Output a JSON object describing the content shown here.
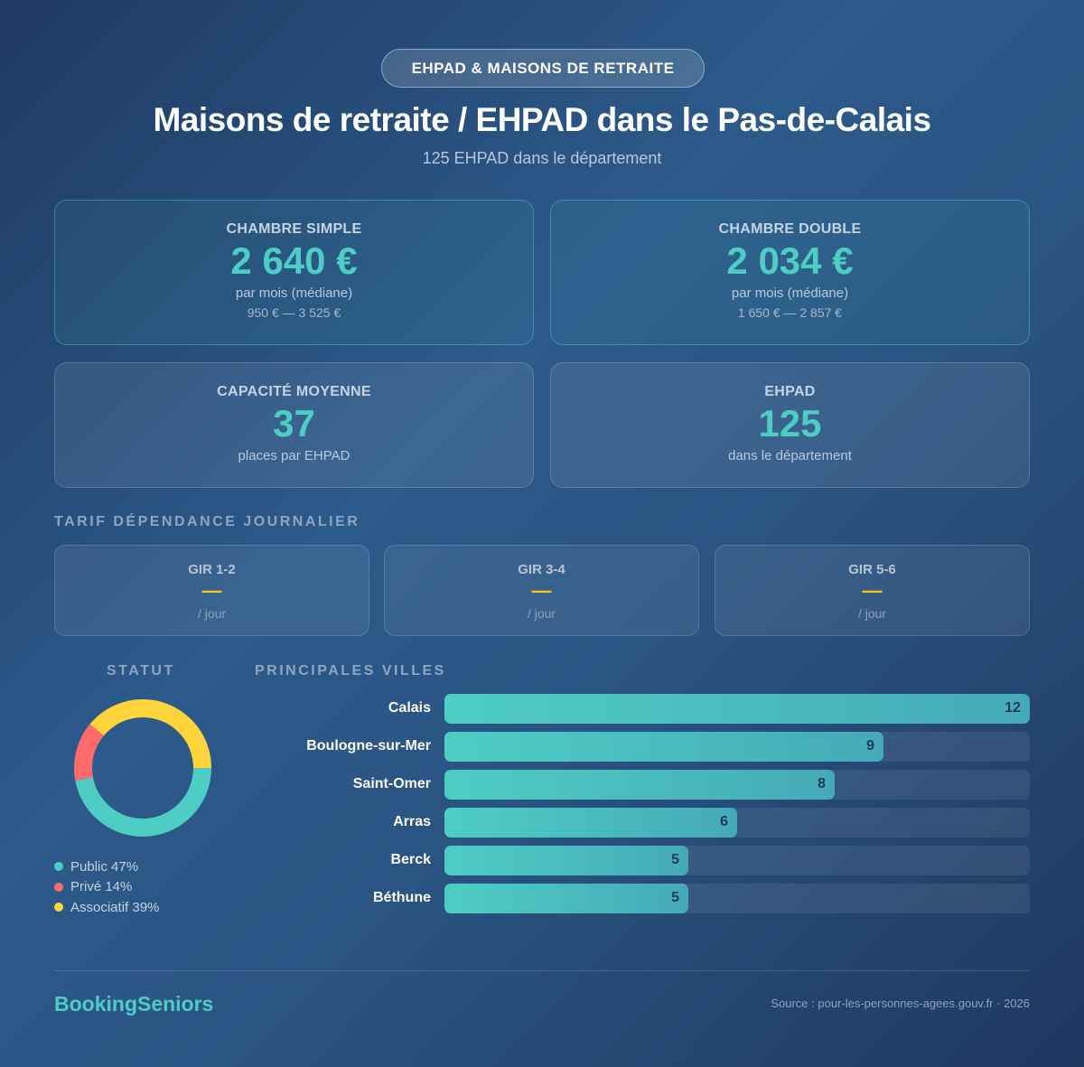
{
  "badge": "EHPAD & MAISONS DE RETRAITE",
  "title": "Maisons de retraite / EHPAD dans le Pas-de-Calais",
  "subtitle": "125 EHPAD dans le département",
  "cards": [
    {
      "label": "CHAMBRE SIMPLE",
      "value": "2 640 €",
      "sub": "par mois (médiane)",
      "range": "950 € — 3 525 €"
    },
    {
      "label": "CHAMBRE DOUBLE",
      "value": "2 034 €",
      "sub": "par mois (médiane)",
      "range": "1 650 € — 2 857 €"
    },
    {
      "label": "CAPACITÉ MOYENNE",
      "value": "37",
      "sub": "places par EHPAD"
    },
    {
      "label": "EHPAD",
      "value": "125",
      "sub": "dans le département"
    }
  ],
  "tarif": {
    "title": "TARIF DÉPENDANCE JOURNALIER",
    "items": [
      {
        "label": "GIR 1-2",
        "value": "—",
        "unit": "/ jour"
      },
      {
        "label": "GIR 3-4",
        "value": "—",
        "unit": "/ jour"
      },
      {
        "label": "GIR 5-6",
        "value": "—",
        "unit": "/ jour"
      }
    ]
  },
  "colors": {
    "accent": "#4ecdc4",
    "public": "#4ecdc4",
    "prive": "#ff6b6b",
    "associatif": "#ffd43b"
  },
  "chart_data": [
    {
      "type": "pie",
      "title": "STATUT",
      "donut": true,
      "slices": [
        {
          "label": "Public 47%",
          "name": "Public",
          "value": 47,
          "color": "#4ecdc4"
        },
        {
          "label": "Privé 14%",
          "name": "Privé",
          "value": 14,
          "color": "#ff6b6b"
        },
        {
          "label": "Associatif 39%",
          "name": "Associatif",
          "value": 39,
          "color": "#ffd43b"
        }
      ]
    },
    {
      "type": "bar",
      "orientation": "horizontal",
      "title": "PRINCIPALES VILLES",
      "categories": [
        "Calais",
        "Boulogne-sur-Mer",
        "Saint-Omer",
        "Arras",
        "Berck",
        "Béthune"
      ],
      "values": [
        12,
        9,
        8,
        6,
        5,
        5
      ],
      "xlim": [
        0,
        12
      ]
    }
  ],
  "footer": {
    "brand": "BookingSeniors",
    "source": "Source : pour-les-personnes-agees.gouv.fr · 2026"
  }
}
